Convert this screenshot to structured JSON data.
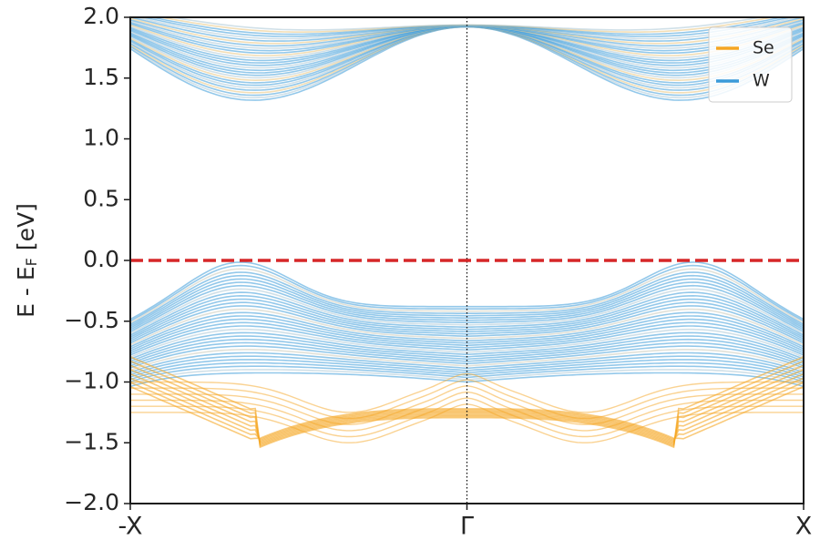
{
  "chart_data": {
    "type": "line",
    "title": "",
    "xlabel": "",
    "ylabel_main": "E - E",
    "ylabel_sub": "F",
    "ylabel_unit": " [eV]",
    "ylim": [
      -2.0,
      2.0
    ],
    "yticks": [
      2.0,
      1.5,
      1.0,
      0.5,
      0.0,
      -0.5,
      -1.0,
      -1.5,
      -2.0
    ],
    "ytick_labels": [
      "2.0",
      "1.5",
      "1.0",
      "0.5",
      "0.0",
      "−0.5",
      "−1.0",
      "−1.5",
      "−2.0"
    ],
    "x_ticks": [
      "-X",
      "Γ",
      "X"
    ],
    "fermi_level": 0.0,
    "grid": false,
    "legend_position": "top-right",
    "series": [
      {
        "name": "Se",
        "color": "#f5a623"
      },
      {
        "name": "W",
        "color": "#3a9ad9"
      }
    ],
    "approx_bands": {
      "valence_top_W": {
        "x": [
          -1,
          -0.85,
          -0.68,
          -0.5,
          -0.25,
          0,
          0.25,
          0.5,
          0.68,
          0.85,
          1
        ],
        "y": [
          -0.55,
          -0.25,
          0.0,
          -0.2,
          -0.42,
          -0.45,
          -0.42,
          -0.2,
          0.0,
          -0.25,
          -0.55
        ]
      },
      "valence_Se_low": {
        "x": [
          -1,
          -0.8,
          -0.64,
          -0.5,
          -0.3,
          -0.1,
          0,
          0.1,
          0.3,
          0.5,
          0.64,
          0.8,
          1
        ],
        "y": [
          -1.1,
          -1.3,
          -1.47,
          -1.4,
          -1.25,
          -1.22,
          -1.22,
          -1.22,
          -1.25,
          -1.4,
          -1.47,
          -1.3,
          -1.1
        ]
      },
      "conduction_min_W": {
        "x": [
          -1,
          -0.8,
          -0.67,
          -0.5,
          -0.25,
          0,
          0.25,
          0.5,
          0.67,
          0.8,
          1
        ],
        "y": [
          1.7,
          1.5,
          1.28,
          1.45,
          1.85,
          2.0,
          1.85,
          1.45,
          1.28,
          1.5,
          1.7
        ]
      }
    }
  }
}
